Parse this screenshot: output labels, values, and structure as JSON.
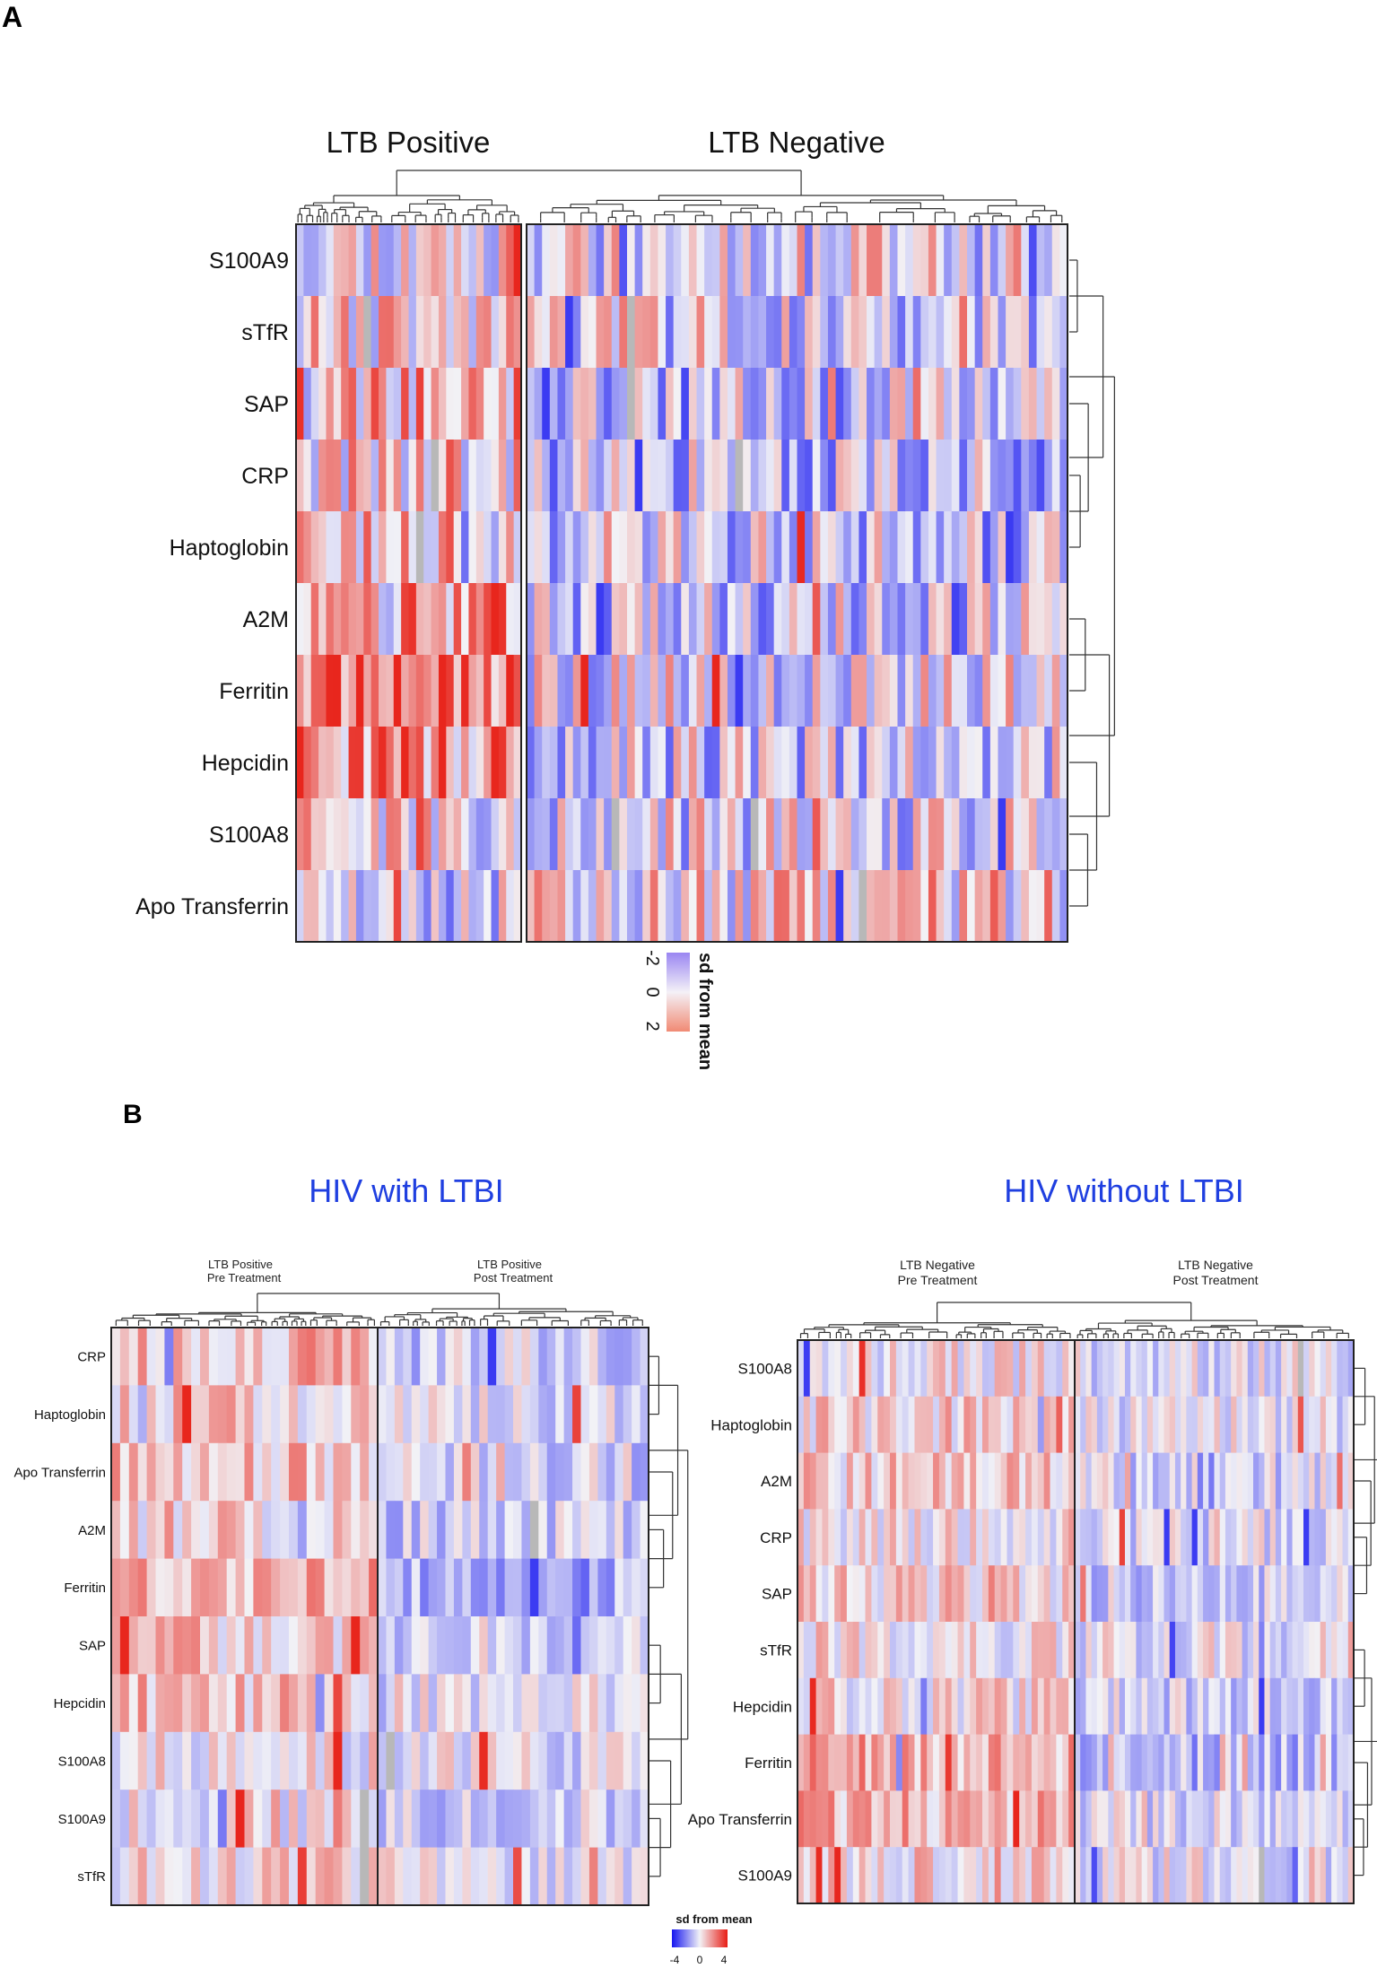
{
  "panels": {
    "A": {
      "letter": "A",
      "groups": [
        "LTB Positive",
        "LTB Negative"
      ],
      "rows": [
        "S100A9",
        "sTfR",
        "SAP",
        "CRP",
        "Haptoglobin",
        "A2M",
        "Ferritin",
        "Hepcidin",
        "S100A8",
        "Apo Transferrin"
      ],
      "legend_title": "sd from mean",
      "legend_ticks": [
        "-2",
        "0",
        "2"
      ]
    },
    "B": {
      "letter": "B",
      "left": {
        "title": "HIV with LTBI",
        "group_labels": [
          [
            "LTB Positive",
            "Pre Treatment"
          ],
          [
            "LTB Positive",
            "Post Treatment"
          ]
        ],
        "rows": [
          "CRP",
          "Haptoglobin",
          "Apo Transferrin",
          "A2M",
          "Ferritin",
          "SAP",
          "Hepcidin",
          "S100A8",
          "S100A9",
          "sTfR"
        ]
      },
      "right": {
        "title": "HIV without LTBI",
        "group_labels": [
          [
            "LTB Negative",
            "Pre Treatment"
          ],
          [
            "LTB Negative",
            "Post Treatment"
          ]
        ],
        "rows": [
          "S100A8",
          "Haptoglobin",
          "A2M",
          "CRP",
          "SAP",
          "sTfR",
          "Hepcidin",
          "Ferritin",
          "Apo Transferrin",
          "S100A9"
        ]
      },
      "legend_title": "sd from mean",
      "legend_ticks": [
        "-4",
        "0",
        "4"
      ]
    }
  },
  "colors": {
    "low": "#3b3bf2",
    "mid": "#f2f2f6",
    "high": "#e8261d",
    "missing": "#b8b8b8",
    "title_blue": "#1f3fe0",
    "border": "#222222",
    "dendrogram": "#333333"
  },
  "chart_data": [
    {
      "type": "heatmap",
      "title": "A",
      "column_groups": [
        "LTB Positive",
        "LTB Negative"
      ],
      "group_sizes": [
        30,
        70
      ],
      "rows": [
        "S100A9",
        "sTfR",
        "SAP",
        "CRP",
        "Haptoglobin",
        "A2M",
        "Ferritin",
        "Hepcidin",
        "S100A8",
        "Apo Transferrin"
      ],
      "color_scale": {
        "label": "sd from mean",
        "min": -2,
        "max": 2
      },
      "row_group_means": [
        [
          0.2,
          -0.1
        ],
        [
          0.2,
          -0.2
        ],
        [
          0.6,
          -0.5
        ],
        [
          0.3,
          -0.5
        ],
        [
          0.3,
          -0.4
        ],
        [
          0.6,
          -0.4
        ],
        [
          1.3,
          -0.2
        ],
        [
          0.9,
          -0.3
        ],
        [
          0.2,
          -0.2
        ],
        [
          -0.2,
          0.2
        ]
      ]
    },
    {
      "type": "heatmap",
      "title": "HIV with LTBI",
      "column_groups": [
        "LTB Positive Pre Treatment",
        "LTB Positive Post Treatment"
      ],
      "group_sizes": [
        30,
        32
      ],
      "rows": [
        "CRP",
        "Haptoglobin",
        "Apo Transferrin",
        "A2M",
        "Ferritin",
        "SAP",
        "Hepcidin",
        "S100A8",
        "S100A9",
        "sTfR"
      ],
      "color_scale": {
        "label": "sd from mean",
        "min": -4,
        "max": 4
      },
      "row_group_means": [
        [
          1.0,
          -0.8
        ],
        [
          0.8,
          -0.5
        ],
        [
          1.0,
          -0.6
        ],
        [
          0.6,
          -0.8
        ],
        [
          1.5,
          -1.2
        ],
        [
          0.8,
          -0.6
        ],
        [
          0.9,
          -0.4
        ],
        [
          0.2,
          -0.3
        ],
        [
          0.2,
          -0.6
        ],
        [
          0.3,
          -0.2
        ]
      ]
    },
    {
      "type": "heatmap",
      "title": "HIV without LTBI",
      "column_groups": [
        "LTB Negative Pre Treatment",
        "LTB Negative Post Treatment"
      ],
      "group_sizes": [
        45,
        50
      ],
      "rows": [
        "S100A8",
        "Haptoglobin",
        "A2M",
        "CRP",
        "SAP",
        "sTfR",
        "Hepcidin",
        "Ferritin",
        "Apo Transferrin",
        "S100A9"
      ],
      "color_scale": {
        "label": "sd from mean",
        "min": -4,
        "max": 4
      },
      "row_group_means": [
        [
          0.2,
          -0.3
        ],
        [
          0.6,
          -0.3
        ],
        [
          0.6,
          -0.6
        ],
        [
          0.4,
          -0.5
        ],
        [
          0.5,
          -0.7
        ],
        [
          0.3,
          -0.2
        ],
        [
          0.3,
          -0.6
        ],
        [
          1.4,
          -1.2
        ],
        [
          1.2,
          -0.5
        ],
        [
          0.5,
          -0.2
        ]
      ]
    }
  ]
}
